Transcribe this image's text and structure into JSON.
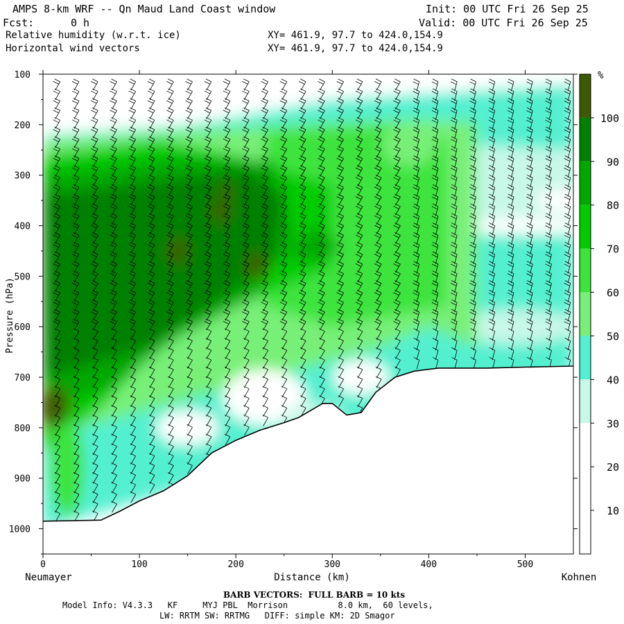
{
  "header": {
    "title": "AMPS 8-km WRF -- Qn Maud Land Coast window",
    "init": "Init: 00 UTC Fri 26 Sep 25",
    "fcst_label": "Fcst:",
    "fcst_value": "0 h",
    "valid": "Valid: 00 UTC Fri 26 Sep 25",
    "field1": "Relative humidity (w.r.t. ice)",
    "field1_xy": "XY= 461.9, 97.7 to 424.0,154.9",
    "field2": "Horizontal wind vectors",
    "field2_xy": "XY= 461.9, 97.7 to 424.0,154.9"
  },
  "footer": {
    "barb_note": "BARB VECTORS:  FULL BARB = 10 kts",
    "model_line1": "Model Info: V4.3.3   KF     MYJ PBL  Morrison          8.0 km,  60 levels,",
    "model_line2": "LW: RRTM SW: RRTMG   DIFF: simple KM: 2D Smagor"
  },
  "colors": {
    "rh_10_20": "#ffffff",
    "rh_20_30": "#ffffff",
    "rh_30_40": "#c8f8e8",
    "rh_40_50": "#52f0d0",
    "rh_50_60": "#78f078",
    "rh_60_70": "#3ce43c",
    "rh_70_80": "#00cc00",
    "rh_80_90": "#00a800",
    "rh_90_100": "#008000",
    "rh_100": "#3c5a00"
  },
  "chart_data": {
    "type": "cross-section",
    "xlabel": "Distance (km)",
    "ylabel": "Pressure (hPa)",
    "x_start_label": "Neumayer",
    "x_end_label": "Kohnen",
    "xlim": [
      0,
      550
    ],
    "ylim": [
      100,
      1050
    ],
    "xticks": [
      0,
      100,
      200,
      300,
      400,
      500
    ],
    "yticks": [
      100,
      200,
      300,
      400,
      500,
      600,
      700,
      800,
      900,
      1000
    ],
    "colorbar": {
      "unit": "%",
      "levels": [
        10,
        20,
        30,
        40,
        50,
        60,
        70,
        80,
        90,
        100
      ]
    },
    "terrain_pressure": [
      {
        "x": 0,
        "p": 985
      },
      {
        "x": 60,
        "p": 983
      },
      {
        "x": 80,
        "p": 965
      },
      {
        "x": 100,
        "p": 945
      },
      {
        "x": 125,
        "p": 925
      },
      {
        "x": 150,
        "p": 895
      },
      {
        "x": 175,
        "p": 850
      },
      {
        "x": 200,
        "p": 825
      },
      {
        "x": 225,
        "p": 805
      },
      {
        "x": 250,
        "p": 790
      },
      {
        "x": 265,
        "p": 780
      },
      {
        "x": 290,
        "p": 752
      },
      {
        "x": 300,
        "p": 752
      },
      {
        "x": 315,
        "p": 775
      },
      {
        "x": 330,
        "p": 770
      },
      {
        "x": 345,
        "p": 730
      },
      {
        "x": 365,
        "p": 700
      },
      {
        "x": 385,
        "p": 688
      },
      {
        "x": 410,
        "p": 682
      },
      {
        "x": 460,
        "p": 682
      },
      {
        "x": 500,
        "p": 680
      },
      {
        "x": 550,
        "p": 678
      }
    ]
  }
}
